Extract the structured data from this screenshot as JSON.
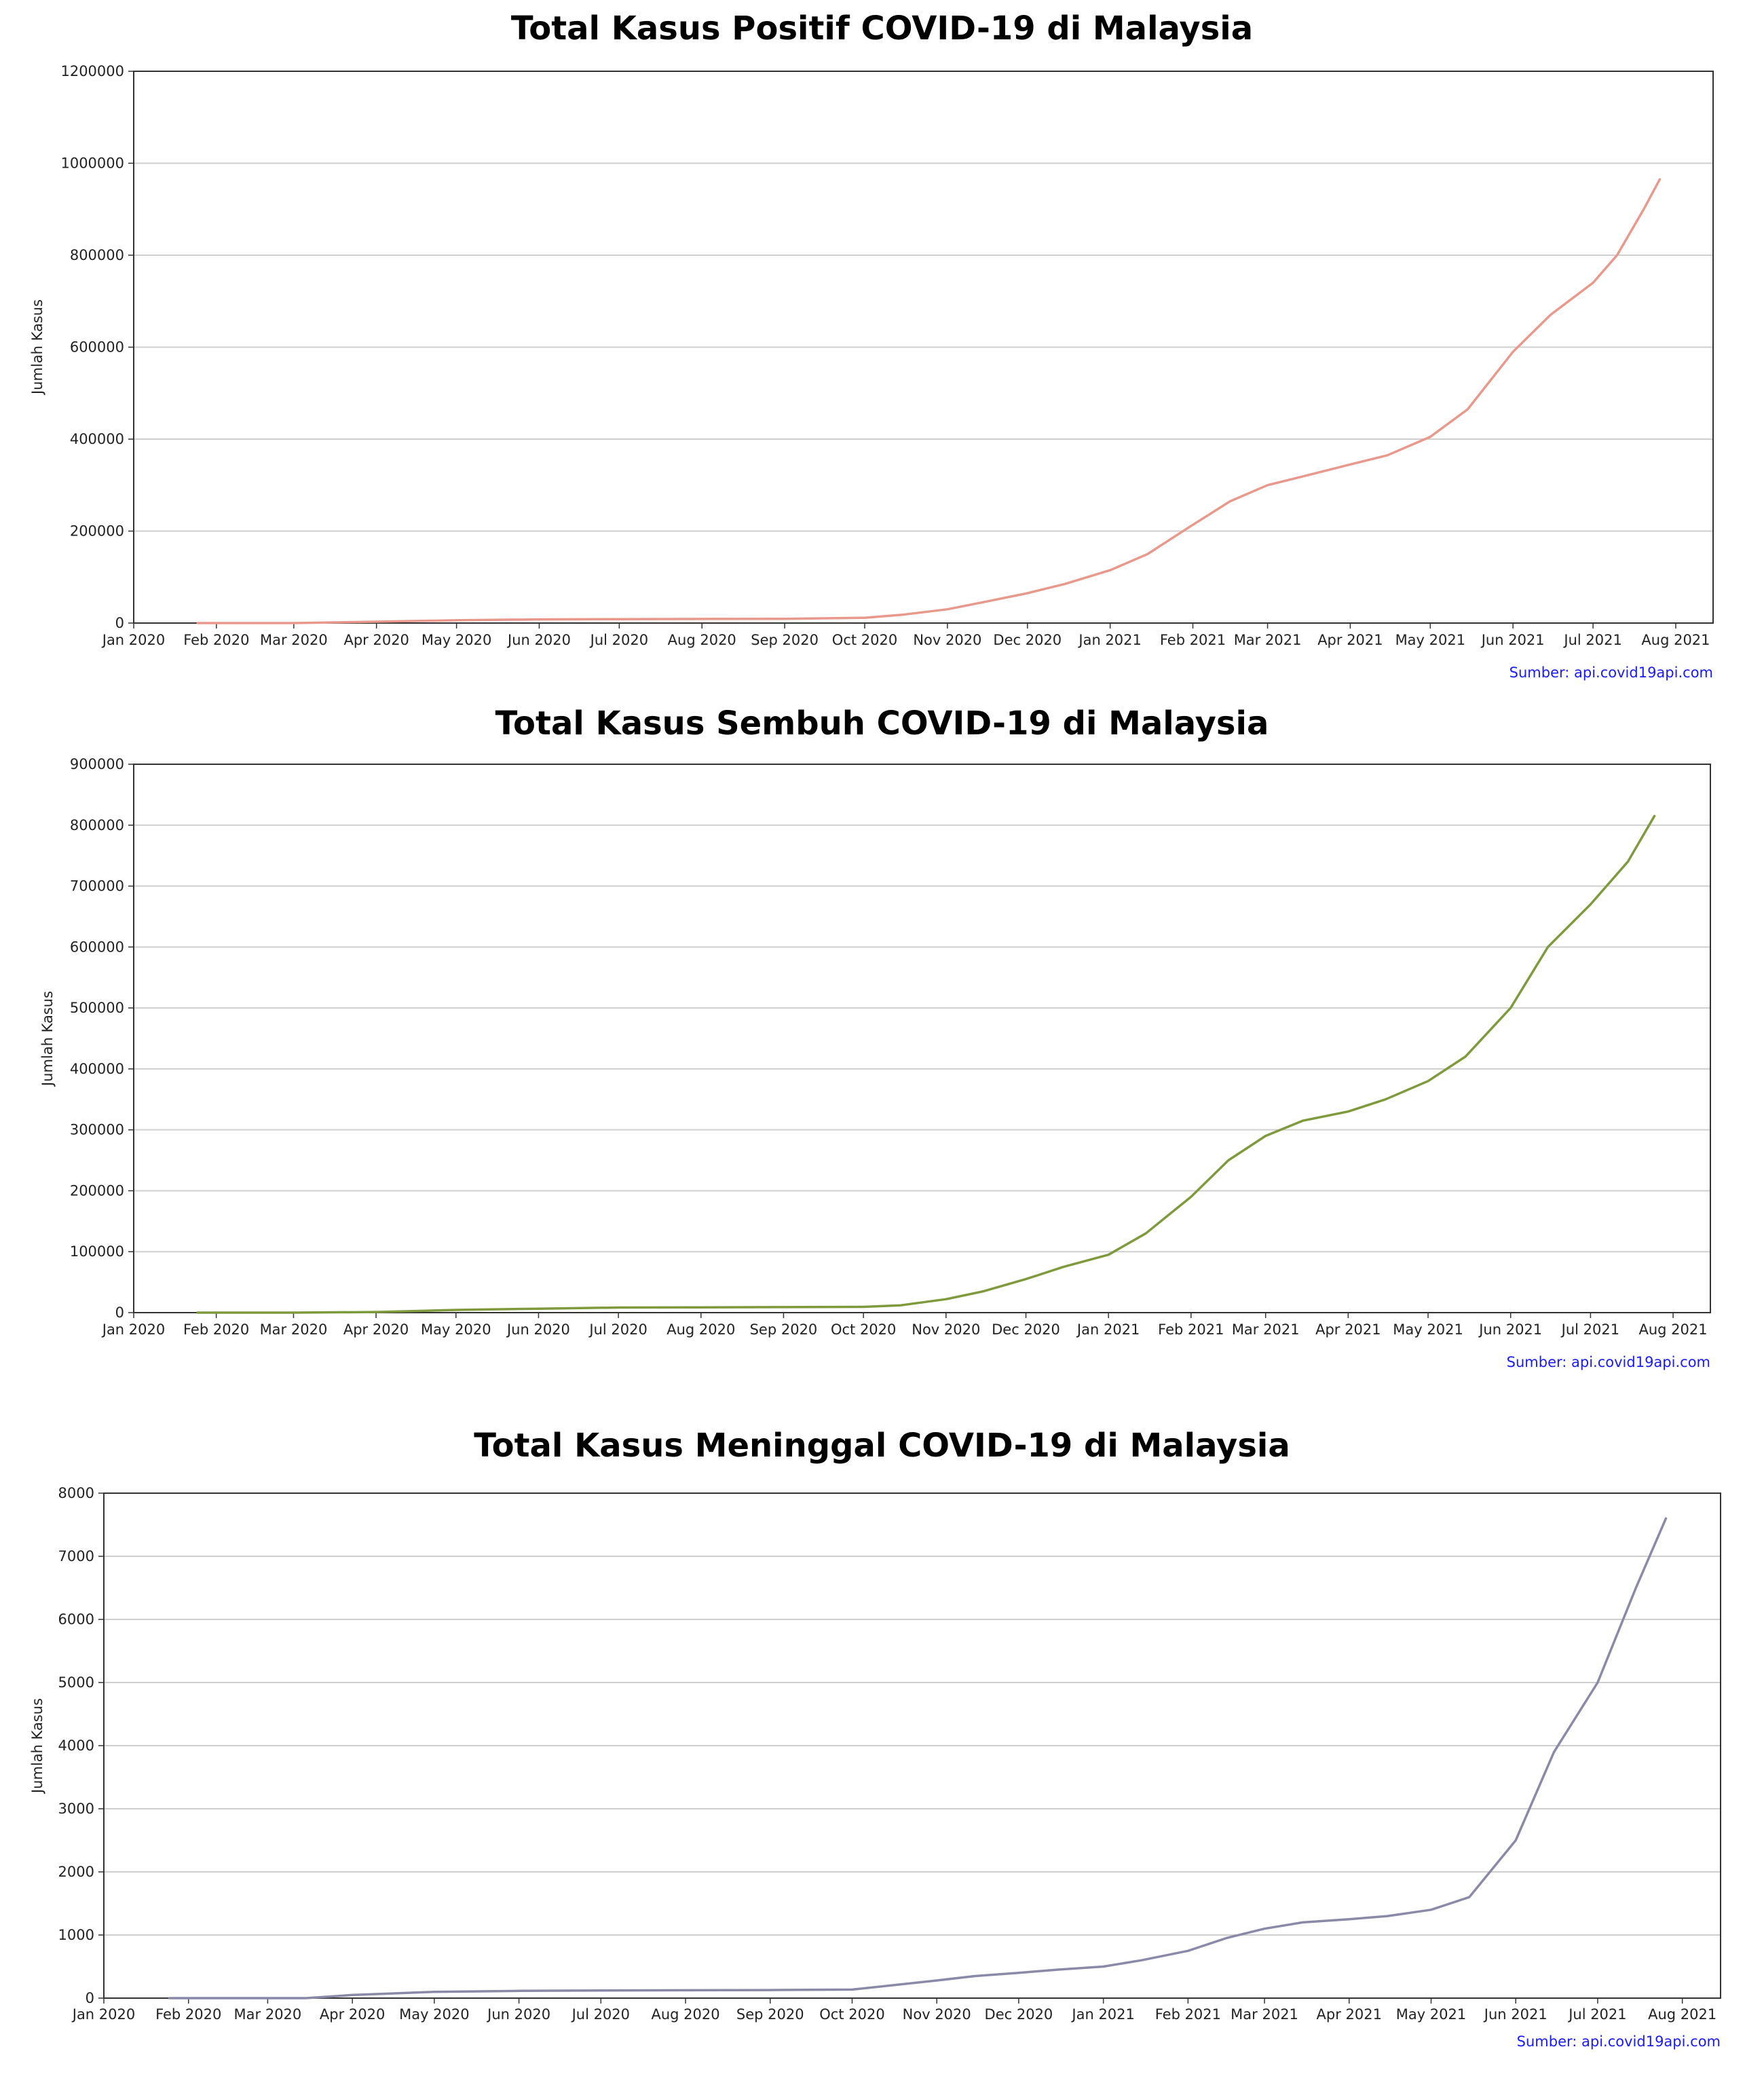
{
  "page": {
    "source_text": "Sumber: api.covid19api.com"
  },
  "chart_data": [
    {
      "type": "line",
      "title": "Total Kasus Positif COVID-19 di Malaysia",
      "xlabel": "",
      "ylabel": "Jumlah Kasus",
      "color": "#e8998c",
      "grid": "y",
      "xlim": [
        "2020-01-01",
        "2021-08-15"
      ],
      "ylim": [
        0,
        1200000
      ],
      "yticks": [
        0,
        200000,
        400000,
        600000,
        800000,
        1000000,
        1200000
      ],
      "ytick_labels": [
        "0",
        "200000",
        "400000",
        "600000",
        "800000",
        "1000000",
        "1200000"
      ],
      "xticks": [
        "2020-01-01",
        "2020-02-01",
        "2020-03-01",
        "2020-04-01",
        "2020-05-01",
        "2020-06-01",
        "2020-07-01",
        "2020-08-01",
        "2020-09-01",
        "2020-10-01",
        "2020-11-01",
        "2020-12-01",
        "2021-01-01",
        "2021-02-01",
        "2021-03-01",
        "2021-04-01",
        "2021-05-01",
        "2021-06-01",
        "2021-07-01",
        "2021-08-01"
      ],
      "xtick_labels": [
        "Jan 2020",
        "Feb 2020",
        "Mar 2020",
        "Apr 2020",
        "May 2020",
        "Jun 2020",
        "Jul 2020",
        "Aug 2020",
        "Sep 2020",
        "Oct 2020",
        "Nov 2020",
        "Dec 2020",
        "Jan 2021",
        "Feb 2021",
        "Mar 2021",
        "Apr 2021",
        "May 2021",
        "Jun 2021",
        "Jul 2021",
        "Aug 2021"
      ],
      "source": "Sumber: api.covid19api.com",
      "x": [
        "2020-01-25",
        "2020-03-01",
        "2020-04-01",
        "2020-05-01",
        "2020-06-01",
        "2020-07-01",
        "2020-08-01",
        "2020-09-01",
        "2020-10-01",
        "2020-10-15",
        "2020-11-01",
        "2020-11-15",
        "2020-12-01",
        "2020-12-15",
        "2021-01-01",
        "2021-01-15",
        "2021-01-31",
        "2021-02-15",
        "2021-03-01",
        "2021-03-15",
        "2021-04-01",
        "2021-04-15",
        "2021-05-01",
        "2021-05-15",
        "2021-06-01",
        "2021-06-15",
        "2021-07-01",
        "2021-07-10",
        "2021-07-20",
        "2021-07-26"
      ],
      "y": [
        4,
        29,
        2900,
        6100,
        7900,
        8600,
        9000,
        9300,
        11500,
        18000,
        30000,
        46000,
        65000,
        85000,
        115000,
        150000,
        210000,
        265000,
        300000,
        320000,
        345000,
        365000,
        405000,
        465000,
        590000,
        670000,
        740000,
        800000,
        900000,
        965000
      ]
    },
    {
      "type": "line",
      "title": "Total Kasus Sembuh COVID-19 di Malaysia",
      "xlabel": "",
      "ylabel": "Jumlah Kasus",
      "color": "#7f9a3d",
      "grid": "y",
      "xlim": [
        "2020-01-01",
        "2021-08-15"
      ],
      "ylim": [
        0,
        900000
      ],
      "yticks": [
        0,
        100000,
        200000,
        300000,
        400000,
        500000,
        600000,
        700000,
        800000,
        900000
      ],
      "ytick_labels": [
        "0",
        "100000",
        "200000",
        "300000",
        "400000",
        "500000",
        "600000",
        "700000",
        "800000",
        "900000"
      ],
      "xticks": [
        "2020-01-01",
        "2020-02-01",
        "2020-03-01",
        "2020-04-01",
        "2020-05-01",
        "2020-06-01",
        "2020-07-01",
        "2020-08-01",
        "2020-09-01",
        "2020-10-01",
        "2020-11-01",
        "2020-12-01",
        "2021-01-01",
        "2021-02-01",
        "2021-03-01",
        "2021-04-01",
        "2021-05-01",
        "2021-06-01",
        "2021-07-01",
        "2021-08-01"
      ],
      "xtick_labels": [
        "Jan 2020",
        "Feb 2020",
        "Mar 2020",
        "Apr 2020",
        "May 2020",
        "Jun 2020",
        "Jul 2020",
        "Aug 2020",
        "Sep 2020",
        "Oct 2020",
        "Nov 2020",
        "Dec 2020",
        "Jan 2021",
        "Feb 2021",
        "Mar 2021",
        "Apr 2021",
        "May 2021",
        "Jun 2021",
        "Jul 2021",
        "Aug 2021"
      ],
      "source": "Sumber: api.covid19api.com",
      "x": [
        "2020-01-25",
        "2020-03-01",
        "2020-04-01",
        "2020-05-01",
        "2020-06-01",
        "2020-07-01",
        "2020-08-01",
        "2020-09-01",
        "2020-10-01",
        "2020-10-15",
        "2020-11-01",
        "2020-11-15",
        "2020-12-01",
        "2020-12-15",
        "2021-01-01",
        "2021-01-15",
        "2021-02-01",
        "2021-02-15",
        "2021-03-01",
        "2021-03-15",
        "2021-04-01",
        "2021-04-15",
        "2021-05-01",
        "2021-05-15",
        "2021-06-01",
        "2021-06-15",
        "2021-07-01",
        "2021-07-15",
        "2021-07-25"
      ],
      "y": [
        1,
        25,
        1000,
        4500,
        6500,
        8300,
        8700,
        9000,
        9500,
        12000,
        22000,
        35000,
        55000,
        75000,
        95000,
        130000,
        190000,
        250000,
        290000,
        315000,
        330000,
        350000,
        380000,
        420000,
        500000,
        600000,
        670000,
        740000,
        815000
      ]
    },
    {
      "type": "line",
      "title": "Total Kasus Meninggal COVID-19 di Malaysia",
      "xlabel": "",
      "ylabel": "Jumlah Kasus",
      "color": "#8a8aa8",
      "grid": "y",
      "xlim": [
        "2020-01-01",
        "2021-08-15"
      ],
      "ylim": [
        0,
        8000
      ],
      "yticks": [
        0,
        1000,
        2000,
        3000,
        4000,
        5000,
        6000,
        7000,
        8000
      ],
      "ytick_labels": [
        "0",
        "1000",
        "2000",
        "3000",
        "4000",
        "5000",
        "6000",
        "7000",
        "8000"
      ],
      "xticks": [
        "2020-01-01",
        "2020-02-01",
        "2020-03-01",
        "2020-04-01",
        "2020-05-01",
        "2020-06-01",
        "2020-07-01",
        "2020-08-01",
        "2020-09-01",
        "2020-10-01",
        "2020-11-01",
        "2020-12-01",
        "2021-01-01",
        "2021-02-01",
        "2021-03-01",
        "2021-04-01",
        "2021-05-01",
        "2021-06-01",
        "2021-07-01",
        "2021-08-01"
      ],
      "xtick_labels": [
        "Jan 2020",
        "Feb 2020",
        "Mar 2020",
        "Apr 2020",
        "May 2020",
        "Jun 2020",
        "Jul 2020",
        "Aug 2020",
        "Sep 2020",
        "Oct 2020",
        "Nov 2020",
        "Dec 2020",
        "Jan 2021",
        "Feb 2021",
        "Mar 2021",
        "Apr 2021",
        "May 2021",
        "Jun 2021",
        "Jul 2021",
        "Aug 2021"
      ],
      "source": "Sumber: api.covid19api.com",
      "x": [
        "2020-01-25",
        "2020-03-15",
        "2020-04-01",
        "2020-05-01",
        "2020-06-01",
        "2020-07-01",
        "2020-08-01",
        "2020-09-01",
        "2020-10-01",
        "2020-10-15",
        "2020-11-01",
        "2020-11-15",
        "2020-12-01",
        "2020-12-15",
        "2021-01-01",
        "2021-01-15",
        "2021-02-01",
        "2021-02-15",
        "2021-03-01",
        "2021-03-15",
        "2021-04-01",
        "2021-04-15",
        "2021-05-01",
        "2021-05-15",
        "2021-06-01",
        "2021-06-15",
        "2021-07-01",
        "2021-07-15",
        "2021-07-26"
      ],
      "y": [
        0,
        0,
        50,
        100,
        115,
        120,
        125,
        128,
        136,
        200,
        280,
        350,
        400,
        450,
        500,
        600,
        750,
        950,
        1100,
        1200,
        1250,
        1300,
        1400,
        1600,
        2500,
        3900,
        5000,
        6500,
        7600
      ]
    }
  ]
}
